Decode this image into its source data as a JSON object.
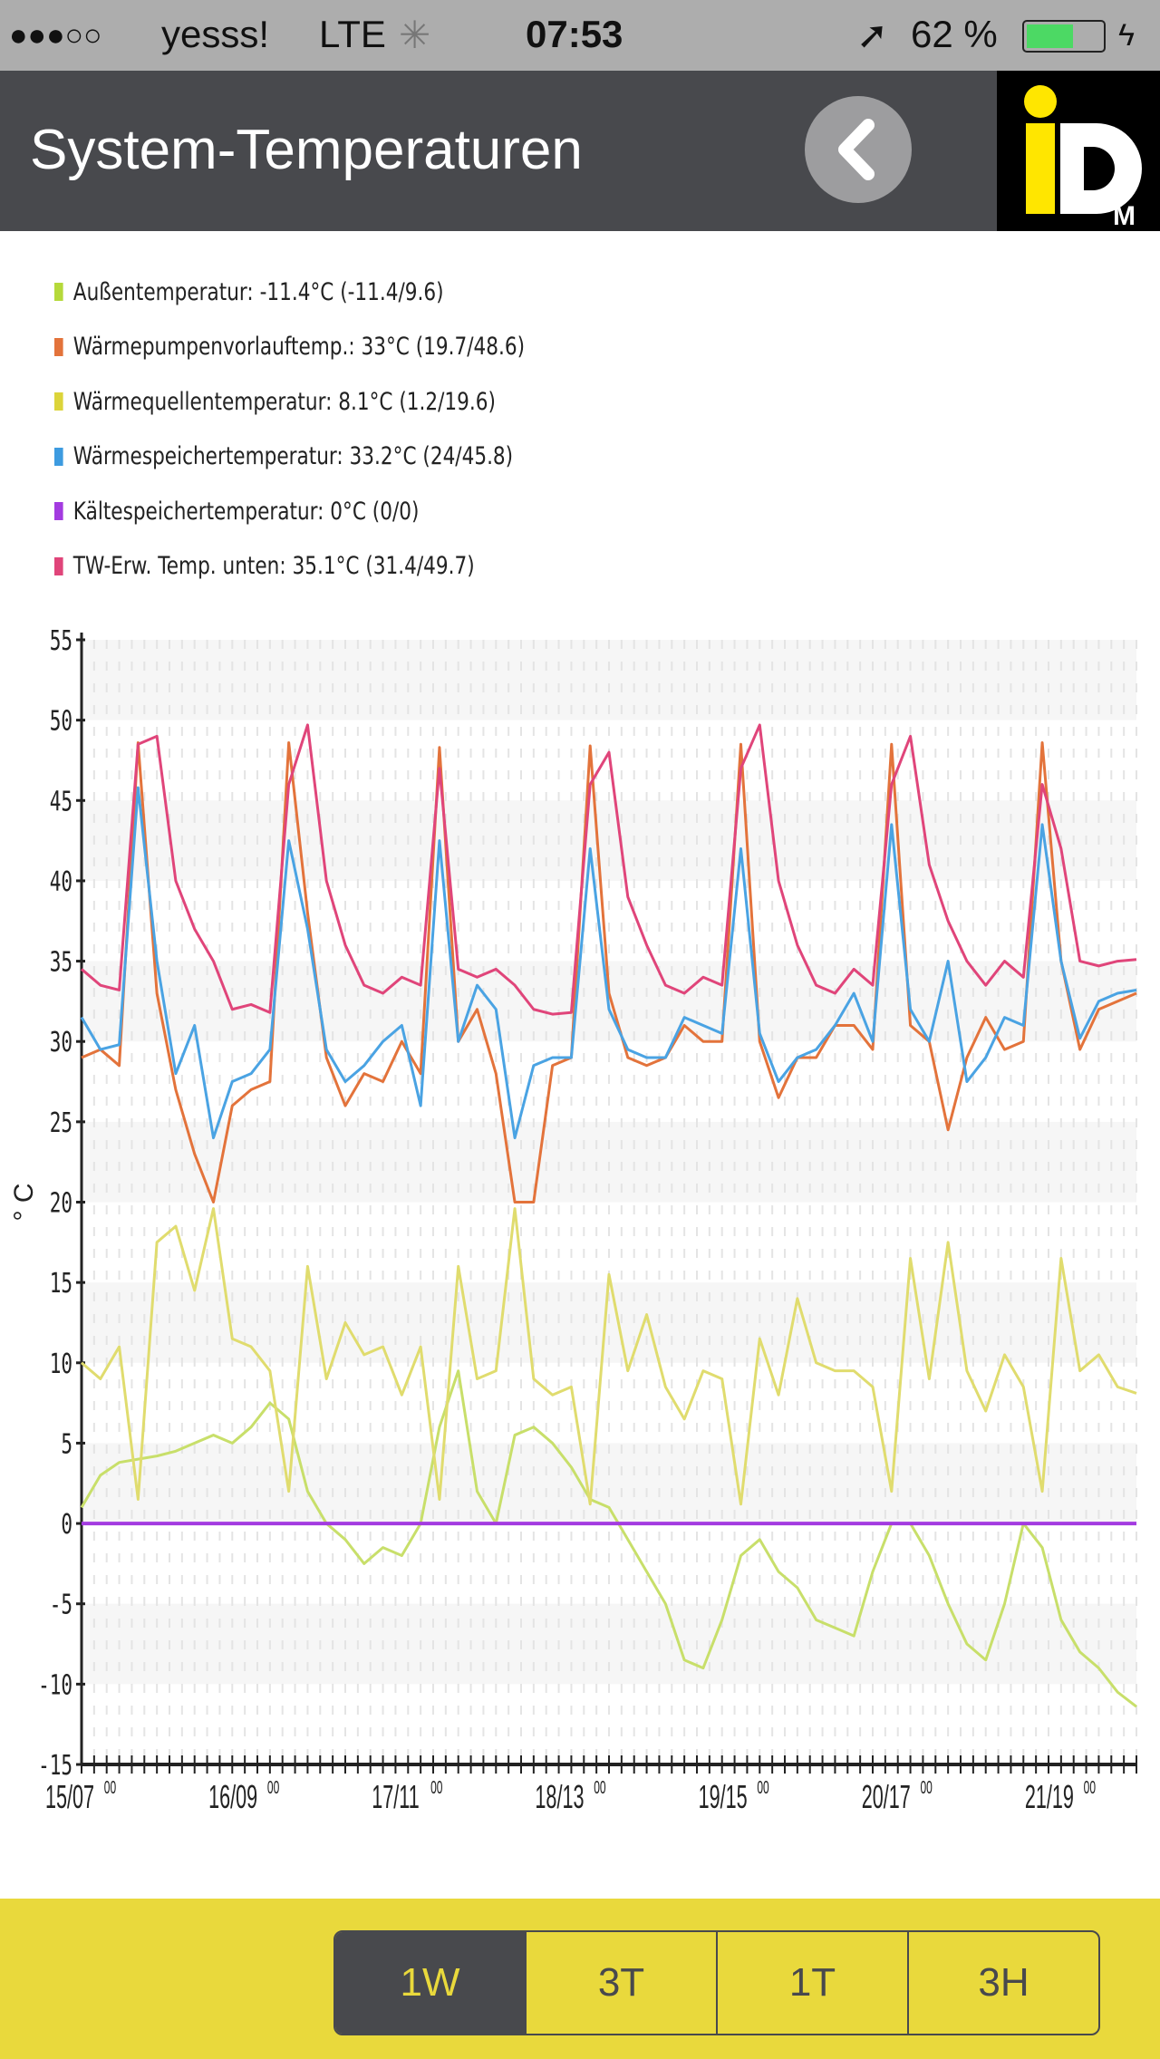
{
  "status_bar": {
    "signal": "●●●○○",
    "carrier": "yesss!",
    "network": "LTE",
    "time": "07:53",
    "battery": "62 %",
    "battery_level": 0.62
  },
  "header": {
    "title": "System-Temperaturen",
    "logo_text": "iDM"
  },
  "legend": [
    {
      "label": "Außentemperatur: -11.4°C (-11.4/9.6)",
      "color": "#b5d93a"
    },
    {
      "label": "Wärmepumpenvorlauftemp.: 33°C (19.7/48.6)",
      "color": "#e3733b"
    },
    {
      "label": "Wärmequellentemperatur: 8.1°C (1.2/19.6)",
      "color": "#dcd43a"
    },
    {
      "label": "Wärmespeichertemperatur: 33.2°C (24/45.8)",
      "color": "#3d9be0"
    },
    {
      "label": "Kältespeichertemperatur: 0°C (0/0)",
      "color": "#a33be0"
    },
    {
      "label": "TW-Erw. Temp. unten: 35.1°C (31.4/49.7)",
      "color": "#e0457a"
    }
  ],
  "chart_data": {
    "type": "line",
    "ylabel": "° C",
    "ylim": [
      -15,
      55
    ],
    "yticks": [
      "55",
      "50",
      "45",
      "40",
      "35",
      "30",
      "25",
      "20",
      "15",
      "10",
      "5",
      "0",
      "-5",
      "-10",
      "-15"
    ],
    "xlim_hours": [
      0,
      168
    ],
    "xticks": [
      {
        "h": 0,
        "d": "15/07",
        "s": "00"
      },
      {
        "h": 26,
        "d": "16/09",
        "s": "00"
      },
      {
        "h": 52,
        "d": "17/11",
        "s": "00"
      },
      {
        "h": 78,
        "d": "18/13",
        "s": "00"
      },
      {
        "h": 104,
        "d": "19/15",
        "s": "00"
      },
      {
        "h": 130,
        "d": "20/17",
        "s": "00"
      },
      {
        "h": 156,
        "d": "21/19",
        "s": "00"
      }
    ],
    "x_step_hours": 3,
    "series": [
      {
        "name": "Außentemperatur",
        "color": "#c8df6a",
        "values": [
          1,
          3,
          3.8,
          4,
          4.2,
          4.5,
          5,
          5.5,
          5,
          6,
          7.5,
          6.5,
          2,
          0,
          -1,
          -2.5,
          -1.5,
          -2,
          0,
          6,
          9.5,
          2,
          0,
          5.5,
          6,
          5,
          3.5,
          1.5,
          1,
          -1,
          -3,
          -5,
          -8.5,
          -9,
          -6,
          -2,
          -1,
          -3,
          -4,
          -6,
          -6.5,
          -7,
          -3,
          0,
          0,
          -2,
          -5,
          -7.5,
          -8.5,
          -5,
          0,
          -1.5,
          -6,
          -8,
          -9,
          -10.5,
          -11.4
        ]
      },
      {
        "name": "Wärmequellentemperatur",
        "color": "#e0dc6e",
        "values": [
          10,
          9,
          11,
          1.5,
          17.5,
          18.5,
          14.5,
          19.6,
          11.5,
          11,
          9.5,
          2,
          16,
          9,
          12.5,
          10.5,
          11,
          8,
          11,
          1.5,
          16,
          9,
          9.5,
          19.6,
          9,
          8,
          8.5,
          1.2,
          15.5,
          9.5,
          13,
          8.5,
          6.5,
          9.5,
          9,
          1.2,
          11.5,
          8,
          14,
          10,
          9.5,
          9.5,
          8.5,
          2,
          16.5,
          9,
          17.5,
          9.5,
          7,
          10.5,
          8.5,
          2,
          16.5,
          9.5,
          10.5,
          8.5,
          8.1
        ]
      },
      {
        "name": "Kältespeichertemperatur",
        "color": "#a33be0",
        "values": [
          0,
          0,
          0,
          0,
          0,
          0,
          0,
          0,
          0,
          0,
          0,
          0,
          0,
          0,
          0,
          0,
          0,
          0,
          0,
          0,
          0,
          0,
          0,
          0,
          0,
          0,
          0,
          0,
          0,
          0,
          0,
          0,
          0,
          0,
          0,
          0,
          0,
          0,
          0,
          0,
          0,
          0,
          0,
          0,
          0,
          0,
          0,
          0,
          0,
          0,
          0,
          0,
          0,
          0,
          0,
          0,
          0
        ]
      },
      {
        "name": "Wärmepumpenvorlauftemp.",
        "color": "#e3733b",
        "values": [
          29,
          29.5,
          28.5,
          48.6,
          33,
          27,
          23,
          20,
          26,
          27,
          27.5,
          48.6,
          38,
          29,
          26,
          28,
          27.5,
          30,
          28,
          48.3,
          30,
          32,
          28,
          20,
          20,
          28.5,
          29,
          48.4,
          33,
          29,
          28.5,
          29,
          31,
          30,
          30,
          48.5,
          30,
          26.5,
          29,
          29,
          31,
          31,
          29.5,
          48.5,
          31,
          30,
          24.5,
          29,
          31.5,
          29.5,
          30,
          48.6,
          35,
          29.5,
          32,
          32.5,
          33
        ]
      },
      {
        "name": "Wärmespeichertemperatur",
        "color": "#4aa3e3",
        "values": [
          31.5,
          29.5,
          29.8,
          45.8,
          35,
          28,
          31,
          24,
          27.5,
          28,
          29.5,
          42.5,
          37,
          29.5,
          27.5,
          28.5,
          30,
          31,
          26,
          42.5,
          30,
          33.5,
          32,
          24,
          28.5,
          29,
          29,
          42,
          32,
          29.5,
          29,
          29,
          31.5,
          31,
          30.5,
          42,
          30.5,
          27.5,
          29,
          29.5,
          31,
          33,
          30,
          43.5,
          32,
          30,
          35,
          27.5,
          29,
          31.5,
          31,
          43.5,
          35,
          30.2,
          32.5,
          33,
          33.2
        ]
      },
      {
        "name": "TW-Erw. Temp. unten",
        "color": "#e0457a",
        "values": [
          34.5,
          33.5,
          33.2,
          48.5,
          49,
          40,
          37,
          35,
          32,
          32.3,
          31.8,
          46,
          49.7,
          40,
          36,
          33.5,
          33,
          34,
          33.5,
          47,
          34.5,
          34,
          34.5,
          33.5,
          32,
          31.7,
          31.8,
          46,
          48,
          39,
          36,
          33.5,
          33,
          34,
          33.5,
          47,
          49.7,
          40,
          36,
          33.5,
          33,
          34.5,
          33.5,
          46,
          49,
          41,
          37.5,
          35,
          33.5,
          35,
          34,
          46,
          42,
          35,
          34.7,
          35,
          35.1
        ]
      }
    ]
  },
  "range_buttons": [
    "1W",
    "3T",
    "1T",
    "3H"
  ],
  "range_selected": "1W"
}
